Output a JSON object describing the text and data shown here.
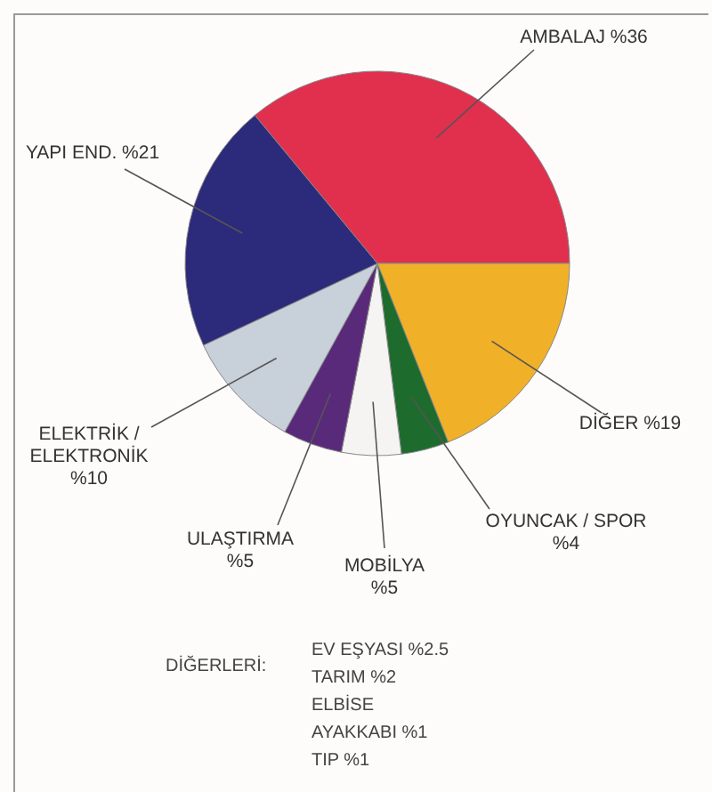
{
  "chart_data": {
    "type": "pie",
    "categories": [
      "AMBALAJ",
      "DİĞER",
      "OYUNCAK / SPOR",
      "MOBİLYA",
      "ULAŞTIRMA",
      "ELEKTRİK / ELEKTRONİK",
      "YAPI END."
    ],
    "values": [
      36,
      19,
      4,
      5,
      5,
      10,
      21
    ],
    "value_labels": [
      "%36",
      "%19",
      "%4",
      "%5",
      "%5",
      "%10",
      "%21"
    ],
    "colors": [
      "#e0304e",
      "#f0b028",
      "#1e6b2e",
      "#f6f4f2",
      "#5a2a7a",
      "#c8d0da",
      "#2c2a7a"
    ],
    "annotations": [
      "DİĞERLERİ:",
      "EV EŞYASI %2.5",
      "TARIM %2",
      "ELBİSE",
      "AYAKKABI %1",
      "TIP %1"
    ]
  }
}
